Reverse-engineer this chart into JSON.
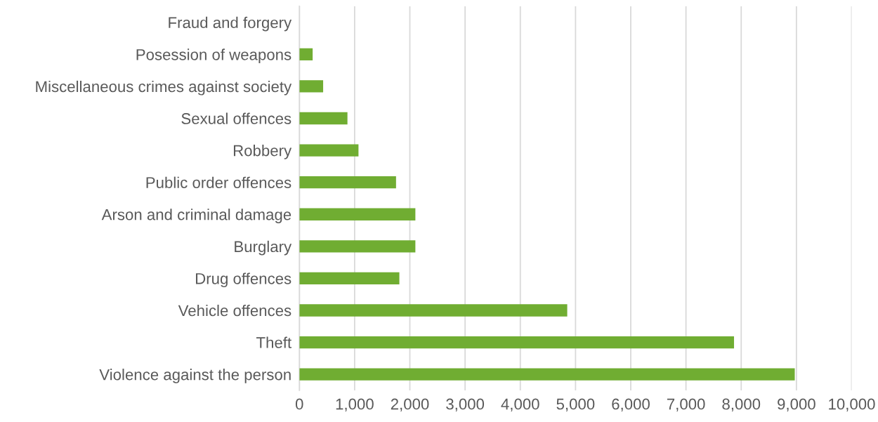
{
  "chart_data": {
    "type": "bar",
    "orientation": "horizontal",
    "categories": [
      "Fraud and forgery",
      "Posession of weapons",
      "Miscellaneous crimes against society",
      "Sexual offences",
      "Robbery",
      "Public order offences",
      "Arson and criminal damage",
      "Burglary",
      "Drug offences",
      "Vehicle offences",
      "Theft",
      "Violence against the person"
    ],
    "values": [
      0,
      240,
      430,
      870,
      1070,
      1750,
      2100,
      2100,
      1810,
      4850,
      7870,
      8970
    ],
    "color": "#70ad32",
    "xlim": [
      0,
      10000
    ],
    "xticks": [
      {
        "value": 0,
        "label": "0"
      },
      {
        "value": 1000,
        "label": "1,000"
      },
      {
        "value": 2000,
        "label": "2,000"
      },
      {
        "value": 3000,
        "label": "3,000"
      },
      {
        "value": 4000,
        "label": "4,000"
      },
      {
        "value": 5000,
        "label": "5,000"
      },
      {
        "value": 6000,
        "label": "6,000"
      },
      {
        "value": 7000,
        "label": "7,000"
      },
      {
        "value": 8000,
        "label": "8,000"
      },
      {
        "value": 9000,
        "label": "9,000"
      },
      {
        "value": 10000,
        "label": "10,000"
      }
    ],
    "grid": "x"
  }
}
